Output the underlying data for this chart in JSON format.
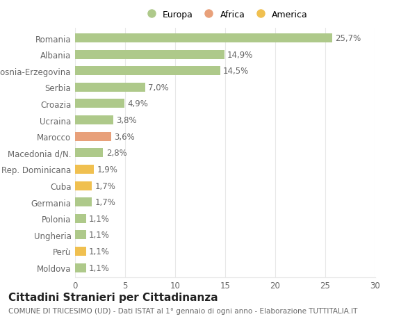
{
  "categories": [
    "Moldova",
    "Perù",
    "Ungheria",
    "Polonia",
    "Germania",
    "Cuba",
    "Rep. Dominicana",
    "Macedonia d/N.",
    "Marocco",
    "Ucraina",
    "Croazia",
    "Serbia",
    "Bosnia-Erzegovina",
    "Albania",
    "Romania"
  ],
  "values": [
    1.1,
    1.1,
    1.1,
    1.1,
    1.7,
    1.7,
    1.9,
    2.8,
    3.6,
    3.8,
    4.9,
    7.0,
    14.5,
    14.9,
    25.7
  ],
  "labels": [
    "1,1%",
    "1,1%",
    "1,1%",
    "1,1%",
    "1,7%",
    "1,7%",
    "1,9%",
    "2,8%",
    "3,6%",
    "3,8%",
    "4,9%",
    "7,0%",
    "14,5%",
    "14,9%",
    "25,7%"
  ],
  "colors": [
    "#aec98a",
    "#f0c050",
    "#aec98a",
    "#aec98a",
    "#aec98a",
    "#f0c050",
    "#f0c050",
    "#aec98a",
    "#e8a07a",
    "#aec98a",
    "#aec98a",
    "#aec98a",
    "#aec98a",
    "#aec98a",
    "#aec98a"
  ],
  "legend_labels": [
    "Europa",
    "Africa",
    "America"
  ],
  "legend_colors": [
    "#aec98a",
    "#e8a07a",
    "#f0c050"
  ],
  "title": "Cittadini Stranieri per Cittadinanza",
  "subtitle": "COMUNE DI TRICESIMO (UD) - Dati ISTAT al 1° gennaio di ogni anno - Elaborazione TUTTITALIA.IT",
  "xlim": [
    0,
    30
  ],
  "xticks": [
    0,
    5,
    10,
    15,
    20,
    25,
    30
  ],
  "bg_color": "#ffffff",
  "grid_color": "#e8e8e8",
  "bar_height": 0.55,
  "label_fontsize": 8.5,
  "tick_fontsize": 8.5,
  "title_fontsize": 11,
  "subtitle_fontsize": 7.5,
  "text_color": "#666666"
}
